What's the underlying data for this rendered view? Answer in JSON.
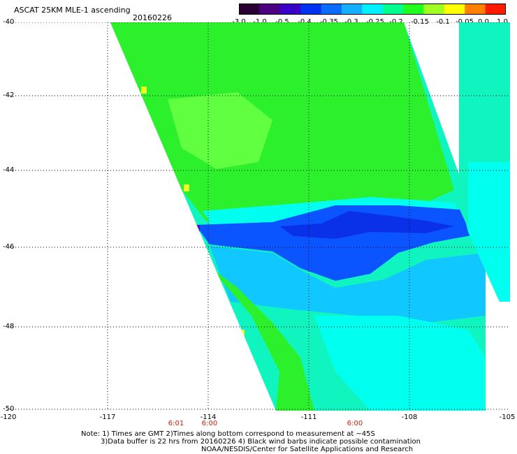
{
  "header": {
    "title": "ASCAT 25KM MLE-1 ascending",
    "date": "20160226"
  },
  "colorbar": {
    "tick_labels": [
      "-3.0",
      "-1.0",
      "-0.5",
      "-0.4",
      "-0.35",
      "-0.3",
      "-0.25",
      "-0.2",
      "-0.15",
      "-0.1",
      "-0.05",
      "0.0",
      "1.0"
    ],
    "colors": [
      "#2a0033",
      "#4b0082",
      "#3b00c8",
      "#0030f0",
      "#0a6cff",
      "#14b0ff",
      "#00f0ff",
      "#00ff90",
      "#20ff20",
      "#a0ff20",
      "#ffff00",
      "#ff8000",
      "#ff1a00"
    ]
  },
  "map": {
    "lat_labels": [
      "-40",
      "-42",
      "-44",
      "-46",
      "-48",
      "-50"
    ],
    "lon_labels": [
      "-120",
      "-117",
      "-114",
      "-111",
      "-108",
      "-105"
    ],
    "lat_range": [
      -50,
      -40
    ],
    "lon_range": [
      -120,
      -105
    ],
    "grid": "dotted",
    "swath_colors": {
      "green": "#2cf02c",
      "light_green": "#60ff40",
      "cyan": "#00ffee",
      "teal": "#10f5c0",
      "light_blue": "#10c8ff",
      "blue": "#0a55ff",
      "dark_blue": "#0a30e8",
      "yellow": "#e8ff20"
    }
  },
  "times": [
    {
      "label": "6:01",
      "lon": -115
    },
    {
      "label": "6:00",
      "lon": -114
    },
    {
      "label": "6:00",
      "lon": -109.6
    }
  ],
  "notes": [
    "Note: 1) Times are GMT 2)Times along bottom correspond to measurement at ~45S",
    "3)Data buffer is 22 hrs from 20160226 4) Black wind barbs indicate possible contamination",
    "NOAA/NESDIS/Center for Satellite Applications and Research"
  ]
}
